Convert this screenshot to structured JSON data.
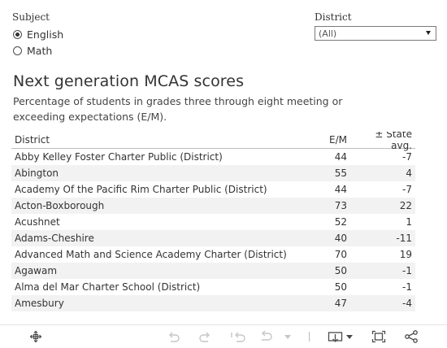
{
  "filters": {
    "subject": {
      "label": "Subject",
      "options": [
        {
          "label": "English",
          "selected": true
        },
        {
          "label": "Math",
          "selected": false
        }
      ]
    },
    "district": {
      "label": "District",
      "value": "(All)"
    }
  },
  "title": "Next generation MCAS scores",
  "subtitle": "Percentage of students in grades three through eight meeting or exceeding expectations (E/M).",
  "table": {
    "headers": {
      "district": "District",
      "em": "E/M",
      "state_avg": "± State avg."
    },
    "rows": [
      {
        "district": "Abby Kelley Foster Charter Public (District)",
        "em": "44",
        "diff": "-7"
      },
      {
        "district": "Abington",
        "em": "55",
        "diff": "4"
      },
      {
        "district": "Academy Of the Pacific Rim Charter Public (District)",
        "em": "44",
        "diff": "-7"
      },
      {
        "district": "Acton-Boxborough",
        "em": "73",
        "diff": "22"
      },
      {
        "district": "Acushnet",
        "em": "52",
        "diff": "1"
      },
      {
        "district": "Adams-Cheshire",
        "em": "40",
        "diff": "-11"
      },
      {
        "district": "Advanced Math and Science Academy Charter (District)",
        "em": "70",
        "diff": "19"
      },
      {
        "district": "Agawam",
        "em": "50",
        "diff": "-1"
      },
      {
        "district": "Alma del Mar Charter School (District)",
        "em": "50",
        "diff": "-1"
      },
      {
        "district": "Amesbury",
        "em": "47",
        "diff": "-4"
      }
    ]
  },
  "toolbar": {
    "icons": [
      "move-icon",
      "undo-icon",
      "redo-icon",
      "revert-icon",
      "refresh-icon",
      "download-icon",
      "fullscreen-icon",
      "share-icon"
    ],
    "icon_color": "#5f5f5f",
    "disabled_icon_color": "#c6c6c6"
  }
}
